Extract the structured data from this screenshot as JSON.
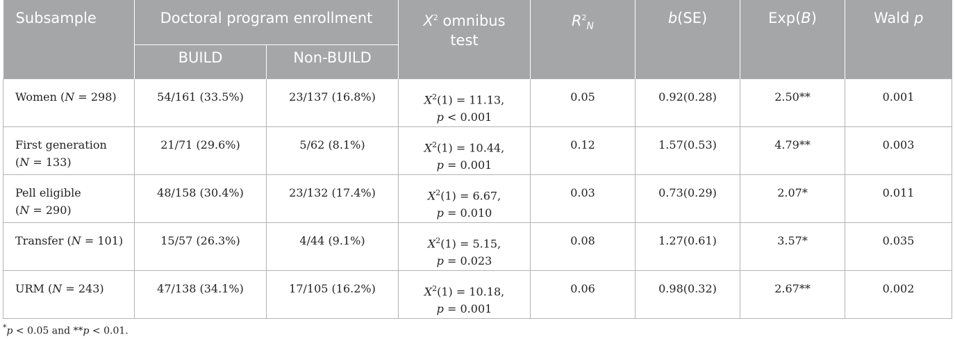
{
  "header": {
    "subsample": "Subsample",
    "enrollment": "Doctoral program enrollment",
    "build": "BUILD",
    "nonbuild": "Non-BUILD",
    "chi_line1": "omnibus",
    "chi_line2": "test",
    "r_base": "R",
    "r_sub": "N",
    "r_sup": "2",
    "b_se_b": "b",
    "b_se_rest": "(SE)",
    "expb_pre": "Exp(",
    "expb_b": "B",
    "expb_post": ")",
    "wald_pre": "Wald ",
    "wald_p": "p"
  },
  "rows": [
    {
      "label": "Women (N = 298)",
      "label_pre": "Women (",
      "label_n": "N",
      "label_post": " = 298)",
      "label_line2": "",
      "build": "54/161 (33.5%)",
      "nonbuild": "23/137 (16.8%)",
      "chi1": "(1) = 11.13,",
      "chi2_p": "p",
      "chi2": " < 0.001",
      "r2": "0.05",
      "bse": "0.92(0.28)",
      "expb": "2.50**",
      "wald": "0.001"
    },
    {
      "label_pre": "First generation",
      "label_n": "",
      "label_post": "",
      "label_line2_pre": "(",
      "label_line2_n": "N",
      "label_line2_post": " = 133)",
      "build": "21/71 (29.6%)",
      "nonbuild": "5/62 (8.1%)",
      "chi1": "(1) = 10.44,",
      "chi2_p": "p",
      "chi2": " = 0.001",
      "r2": "0.12",
      "bse": "1.57(0.53)",
      "expb": "4.79**",
      "wald": "0.003"
    },
    {
      "label_pre": "Pell eligible",
      "label_n": "",
      "label_post": "",
      "label_line2_pre": "(",
      "label_line2_n": "N",
      "label_line2_post": " = 290)",
      "build": "48/158 (30.4%)",
      "nonbuild": "23/132 (17.4%)",
      "chi1": "(1) = 6.67,",
      "chi2_p": "p",
      "chi2": " = 0.010",
      "r2": "0.03",
      "bse": "0.73(0.29)",
      "expb": "2.07*",
      "wald": "0.011"
    },
    {
      "label_pre": "Transfer (",
      "label_n": "N",
      "label_post": " = 101)",
      "build": "15/57 (26.3%)",
      "nonbuild": "4/44 (9.1%)",
      "chi1": "(1) = 5.15,",
      "chi2_p": "p",
      "chi2": " = 0.023",
      "r2": "0.08",
      "bse": "1.27(0.61)",
      "expb": "3.57*",
      "wald": "0.035"
    },
    {
      "label_pre": "URM (",
      "label_n": "N",
      "label_post": " = 243)",
      "build": "47/138 (34.1%)",
      "nonbuild": "17/105 (16.2%)",
      "chi1": "(1) = 10.18,",
      "chi2_p": "p",
      "chi2": " = 0.001",
      "r2": "0.06",
      "bse": "0.98(0.32)",
      "expb": "2.67**",
      "wald": "0.002"
    }
  ],
  "chi_symbol": "X",
  "chi_sup": "2",
  "footnote": {
    "star1": "*",
    "p1": "p",
    "mid": " < 0.05 and **",
    "p2": "p",
    "end": " < 0.01."
  }
}
